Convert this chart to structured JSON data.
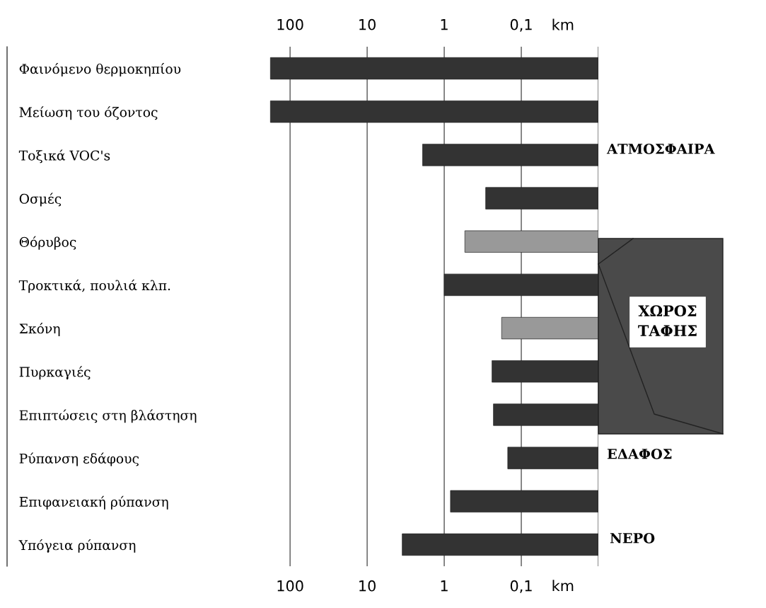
{
  "chart_data": {
    "type": "bar",
    "orientation": "horizontal",
    "log": "x",
    "categories": [
      "Φαινόμενο θερμοκηπίου",
      "Μείωση του όζοντος",
      "Τοξικά VOC's",
      "Οσμές",
      "Θόρυβος",
      "Τροκτικά, πουλιά κλπ.",
      "Σκόνη",
      "Πυρκαγιές",
      "Επιπτώσεις στη βλάστηση",
      "Ρύπανση εδάφους",
      "Επιφανειακή ρύπανση",
      "Υπόγεια ρύπανση"
    ],
    "base": [
      0.01,
      0.01,
      0.01,
      0.01,
      0.01,
      0.01,
      0.01,
      0.01,
      0.01,
      0.01,
      0.01,
      0.01
    ],
    "values": [
      180,
      180,
      1.9,
      0.28,
      0.53,
      0.99,
      0.17,
      0.23,
      0.22,
      0.14,
      0.82,
      3.5
    ],
    "colors": [
      "#333333",
      "#333333",
      "#333333",
      "#333333",
      "#999999",
      "#333333",
      "#999999",
      "#333333",
      "#333333",
      "#333333",
      "#333333",
      "#333333"
    ],
    "xlim": [
      470000,
      0.01
    ],
    "xticks": [
      {
        "value": 100,
        "label": "100"
      },
      {
        "value": 10,
        "label": "10"
      },
      {
        "value": 1,
        "label": "1"
      },
      {
        "value": 0.1,
        "label": "0,1"
      },
      {
        "value": 0.01,
        "label": null
      }
    ],
    "xlabel": "km",
    "grid": "x",
    "annotations": [
      "ΑΤΜΟΣΦΑΙΡΑ",
      "ΕΔΑΦΟΣ",
      "ΝΕΡΟ",
      "ΧΩΡΟΣ\nΤΑΦΗΣ"
    ]
  }
}
